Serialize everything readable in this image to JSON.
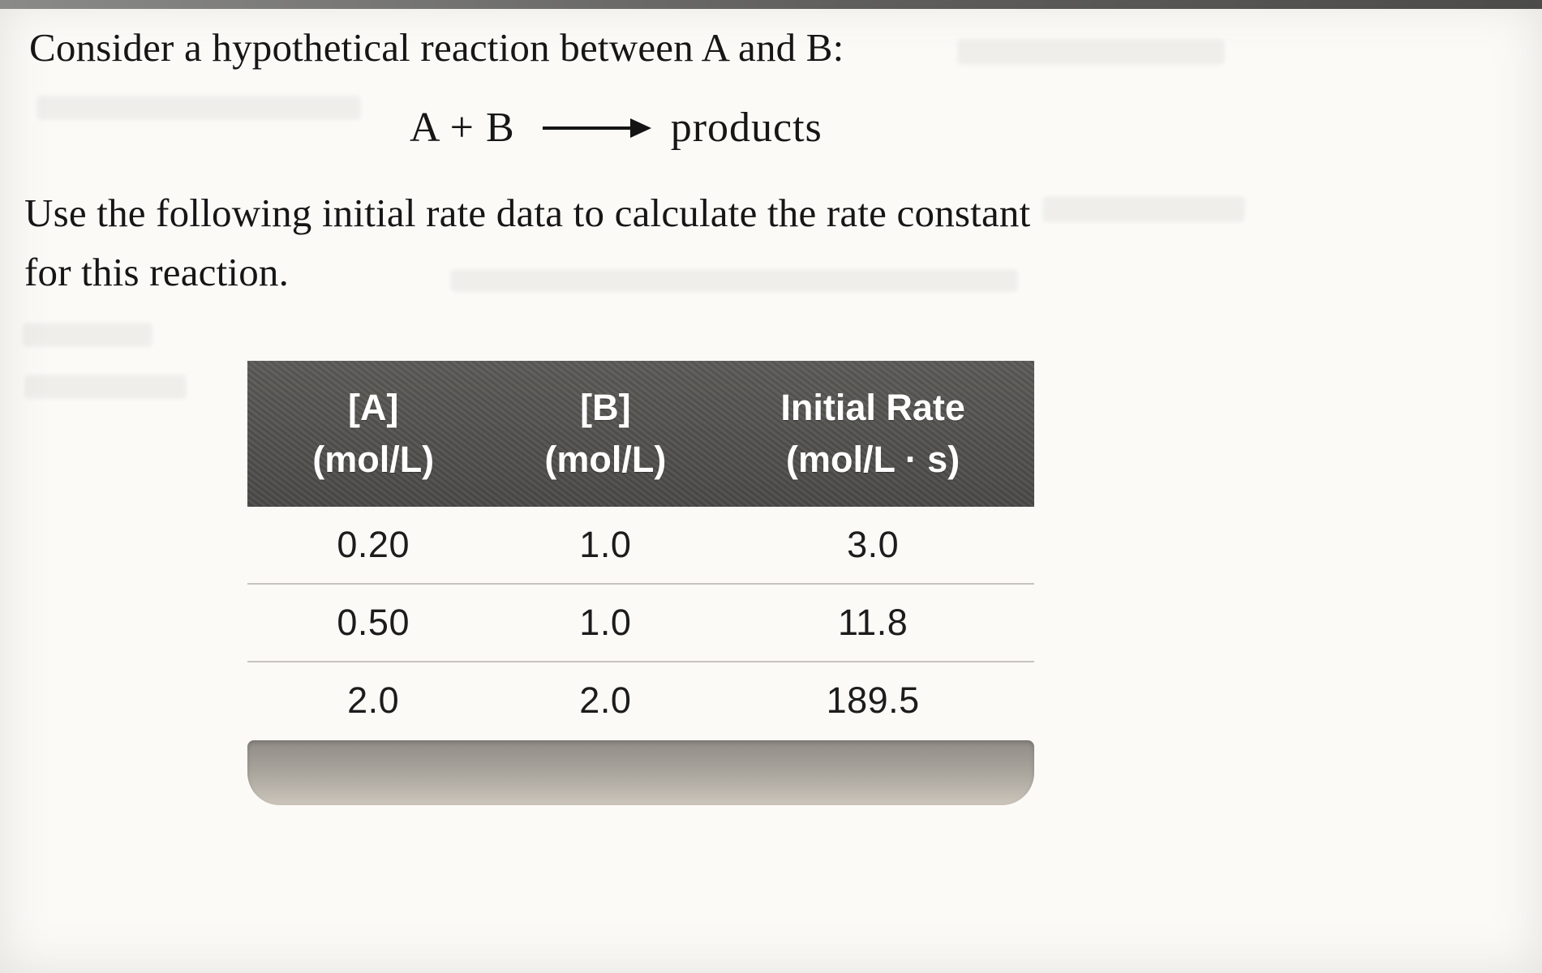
{
  "document": {
    "intro": "Consider a hypothetical reaction between A and B:",
    "equation": {
      "lhs": "A + B",
      "rhs": "products"
    },
    "instruction_line1": "Use the following initial rate data to calculate the rate constant",
    "instruction_line2": "for this reaction."
  },
  "table": {
    "headers": [
      {
        "line1": "[A]",
        "line2": "(mol/L)"
      },
      {
        "line1": "[B]",
        "line2": "(mol/L)"
      },
      {
        "line1": "Initial Rate",
        "line2": "(mol/L · s)"
      }
    ],
    "rows": [
      [
        "0.20",
        "1.0",
        "3.0"
      ],
      [
        "0.50",
        "1.0",
        "11.8"
      ],
      [
        "2.0",
        "2.0",
        "189.5"
      ]
    ]
  },
  "chart_data": {
    "type": "table",
    "columns": [
      "[A] (mol/L)",
      "[B] (mol/L)",
      "Initial Rate (mol/L · s)"
    ],
    "rows": [
      [
        0.2,
        1.0,
        3.0
      ],
      [
        0.5,
        1.0,
        11.8
      ],
      [
        2.0,
        2.0,
        189.5
      ]
    ]
  },
  "colors": {
    "header_bg": "#51504e",
    "header_text": "#ffffff",
    "body_text": "#1c1c1c",
    "row_divider": "#c7c4bf",
    "footer_bar_top": "#918d87",
    "footer_bar_bottom": "#cbc5bb",
    "page_bg": "#fbfaf7"
  }
}
